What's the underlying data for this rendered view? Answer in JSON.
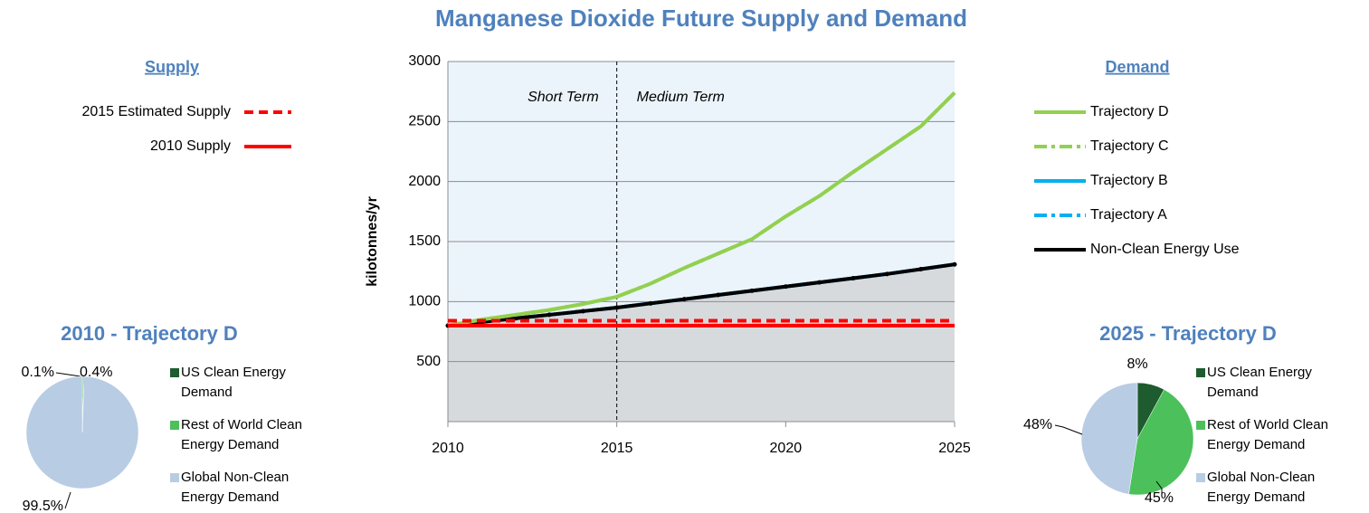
{
  "chart_data": [
    {
      "type": "line",
      "title": "Manganese Dioxide Future Supply and Demand",
      "y_label": "kilotonnes/yr",
      "supply_title": "Supply",
      "demand_title": "Demand",
      "annotations": [
        "Short Term",
        "Medium Term"
      ],
      "divider_x": 2015,
      "x": [
        2010,
        2011,
        2012,
        2013,
        2014,
        2015,
        2016,
        2017,
        2018,
        2019,
        2020,
        2021,
        2022,
        2023,
        2024,
        2025
      ],
      "xlim": [
        2010,
        2025
      ],
      "xticks": [
        2010,
        2015,
        2020,
        2025
      ],
      "ylim": [
        0,
        3000
      ],
      "yticks": [
        500,
        1000,
        1500,
        2000,
        2500,
        3000
      ],
      "grid": true,
      "series": [
        {
          "name": "2015 Estimated Supply",
          "group": "supply",
          "style": "dashed",
          "color": "#ff0000",
          "values": [
            840,
            840,
            840,
            840,
            840,
            840,
            840,
            840,
            840,
            840,
            840,
            840,
            840,
            840,
            840,
            840
          ]
        },
        {
          "name": "2010 Supply",
          "group": "supply",
          "style": "solid",
          "color": "#ff0000",
          "values": [
            800,
            800,
            800,
            800,
            800,
            800,
            800,
            800,
            800,
            800,
            800,
            800,
            800,
            800,
            800,
            800
          ]
        },
        {
          "name": "Trajectory D",
          "group": "demand",
          "style": "solid",
          "color": "#92d050",
          "values": [
            800,
            850,
            890,
            930,
            980,
            1040,
            1150,
            1280,
            1400,
            1520,
            1710,
            1880,
            2080,
            2270,
            2460,
            2740
          ]
        },
        {
          "name": "Trajectory C",
          "group": "demand",
          "style": "dashdot",
          "color": "#92d050",
          "values": [
            800,
            850,
            890,
            930,
            980,
            1040,
            1150,
            1280,
            1400,
            1520,
            1710,
            1880,
            2080,
            2270,
            2460,
            2740
          ]
        },
        {
          "name": "Trajectory B",
          "group": "demand",
          "style": "solid",
          "color": "#00b0f0",
          "values": [
            800,
            830,
            860,
            890,
            920,
            950,
            985,
            1020,
            1055,
            1090,
            1125,
            1160,
            1195,
            1230,
            1270,
            1310
          ]
        },
        {
          "name": "Trajectory A",
          "group": "demand",
          "style": "dashdot",
          "color": "#00b0f0",
          "values": [
            800,
            830,
            860,
            890,
            920,
            950,
            985,
            1020,
            1055,
            1090,
            1125,
            1160,
            1195,
            1230,
            1270,
            1310
          ]
        },
        {
          "name": "Non-Clean Energy Use",
          "group": "demand",
          "style": "solid",
          "color": "#000000",
          "area": true,
          "markers": true,
          "values": [
            800,
            830,
            860,
            890,
            920,
            950,
            985,
            1020,
            1055,
            1090,
            1125,
            1160,
            1195,
            1230,
            1270,
            1310
          ]
        }
      ]
    },
    {
      "type": "pie",
      "title": "2010 - Trajectory D",
      "categories": [
        "US Clean Energy Demand",
        "Rest of World Clean Energy Demand",
        "Global Non-Clean Energy Demand"
      ],
      "colors": [
        "#1e5b2e",
        "#4cc05a",
        "#b8cce4"
      ],
      "values": [
        0.1,
        0.4,
        99.5
      ],
      "value_labels": [
        "0.1%",
        "0.4%",
        "99.5%"
      ]
    },
    {
      "type": "pie",
      "title": "2025 - Trajectory D",
      "categories": [
        "US Clean Energy Demand",
        "Rest of World Clean Energy Demand",
        "Global Non-Clean Energy Demand"
      ],
      "colors": [
        "#1e5b2e",
        "#4cc05a",
        "#b8cce4"
      ],
      "values": [
        8,
        45,
        48
      ],
      "value_labels": [
        "8%",
        "45%",
        "48%"
      ]
    }
  ]
}
